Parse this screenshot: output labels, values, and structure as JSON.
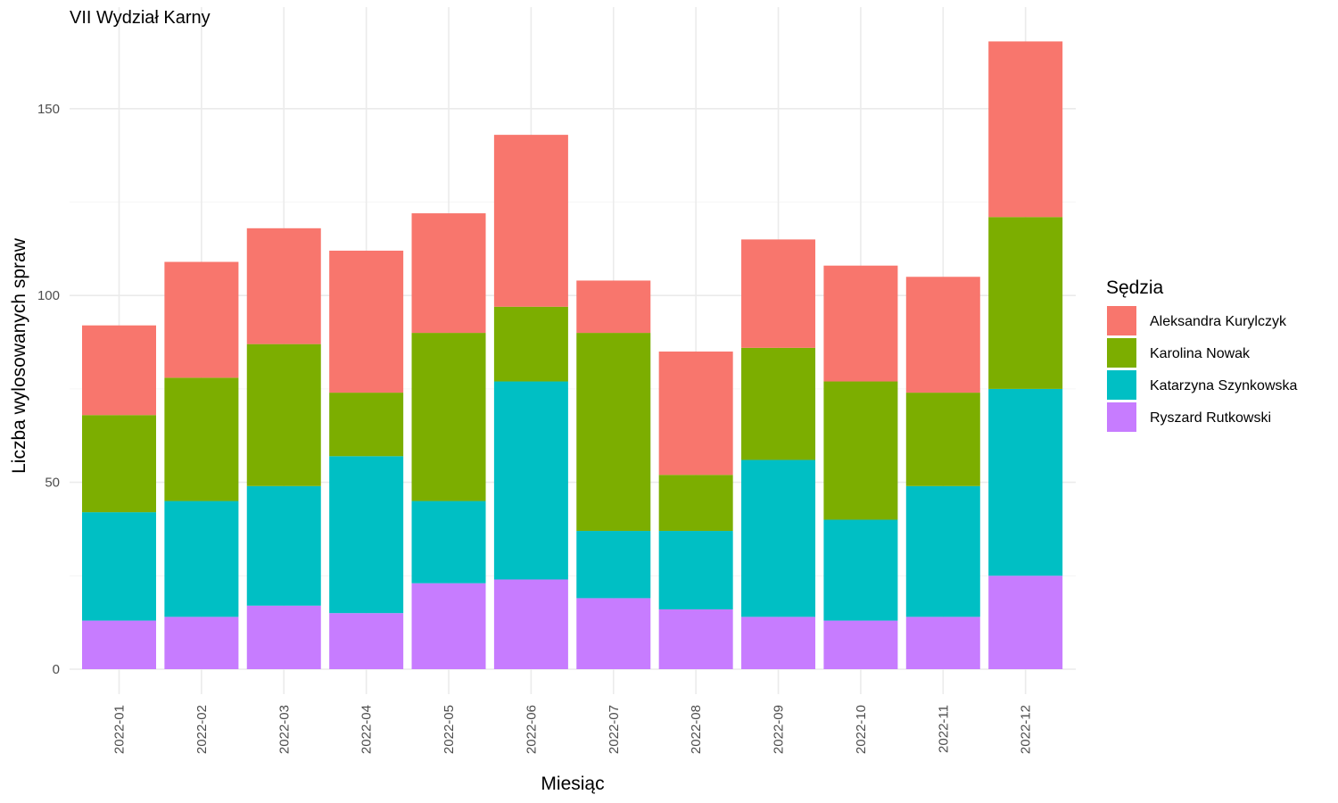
{
  "chart_data": {
    "type": "bar",
    "stacked": true,
    "title": "VII Wydział Karny",
    "xlabel": "Miesiąc",
    "ylabel": "Liczba wylosowanych spraw",
    "ylim": [
      0,
      175
    ],
    "yticks": [
      0,
      50,
      100,
      150
    ],
    "grid": true,
    "legend": {
      "title": "Sędzia",
      "position": "right"
    },
    "categories": [
      "2022-01",
      "2022-02",
      "2022-03",
      "2022-04",
      "2022-05",
      "2022-06",
      "2022-07",
      "2022-08",
      "2022-09",
      "2022-10",
      "2022-11",
      "2022-12"
    ],
    "series": [
      {
        "name": "Ryszard Rutkowski",
        "color": "#C77CFF",
        "values": [
          13,
          14,
          17,
          15,
          23,
          24,
          19,
          16,
          14,
          13,
          14,
          25
        ]
      },
      {
        "name": "Katarzyna Szynkowska",
        "color": "#00BFC4",
        "values": [
          29,
          31,
          32,
          42,
          22,
          53,
          18,
          21,
          42,
          27,
          35,
          50
        ]
      },
      {
        "name": "Karolina Nowak",
        "color": "#7CAE00",
        "values": [
          26,
          33,
          38,
          17,
          45,
          20,
          53,
          15,
          30,
          37,
          25,
          46
        ]
      },
      {
        "name": "Aleksandra Kurylczyk",
        "color": "#F8766D",
        "values": [
          24,
          31,
          31,
          38,
          32,
          46,
          14,
          33,
          29,
          31,
          31,
          47
        ]
      }
    ],
    "legend_order": [
      "Aleksandra Kurylczyk",
      "Karolina Nowak",
      "Katarzyna Szynkowska",
      "Ryszard Rutkowski"
    ]
  }
}
